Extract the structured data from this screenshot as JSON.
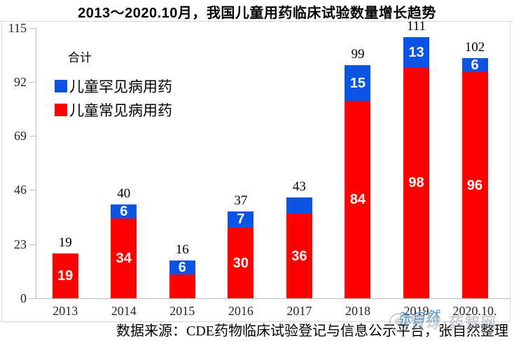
{
  "page": {
    "title": "2013～2020.10月，我国儿童用药临床试验数量增长趋势"
  },
  "legend": {
    "total": "合计",
    "rare": "儿童罕见病用药",
    "common": "儿童常见病用药"
  },
  "source_note": "数据来源：CDE药物临床试验登记与信息公示平台，张自然整理",
  "watermarks": {
    "author": "张自然",
    "site": "雪球·药智网",
    "site_icon_glyph": "❆"
  },
  "colors": {
    "common_red": "#fe0000",
    "rare_blue": "#0b54e4",
    "axis_gray": "#bfbfbf",
    "watermark_blue": "#4a8fd0",
    "watermark_gray": "rgba(160,168,177,0.55)"
  },
  "chart_data": {
    "type": "bar",
    "stacked": true,
    "title": "2013～2020.10月，我国儿童用药临床试验数量增长趋势",
    "xlabel": "",
    "ylabel": "",
    "categories": [
      "2013",
      "2014",
      "2015",
      "2016",
      "2017",
      "2018",
      "2019",
      "2020.10."
    ],
    "series": [
      {
        "name": "儿童常见病用药",
        "color_key": "common_red",
        "values": [
          19,
          34,
          10,
          30,
          36,
          84,
          98,
          96
        ],
        "labels": [
          "19",
          "34",
          "",
          "30",
          "36",
          "84",
          "98",
          "96"
        ]
      },
      {
        "name": "儿童罕见病用药",
        "color_key": "rare_blue",
        "values": [
          0,
          6,
          6,
          7,
          7,
          15,
          13,
          6
        ],
        "labels": [
          "",
          "6",
          "6",
          "7",
          "",
          "15",
          "13",
          "6"
        ]
      }
    ],
    "totals": [
      19,
      40,
      16,
      37,
      43,
      99,
      111,
      102
    ],
    "totals_label_series": "合计",
    "yticks": [
      0,
      23,
      46,
      69,
      92,
      115
    ],
    "ylim": [
      0,
      115
    ],
    "grid": false,
    "legend_position": "top-left"
  }
}
